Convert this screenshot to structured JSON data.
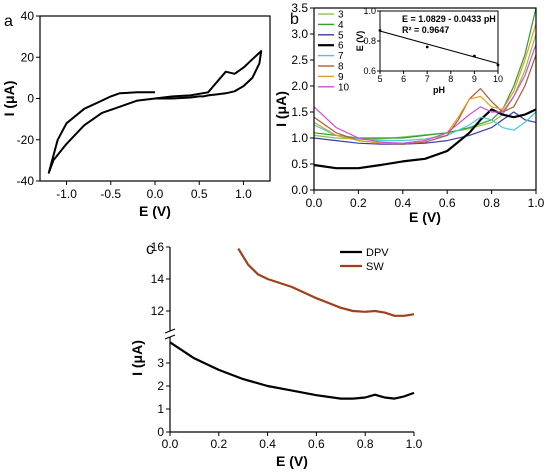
{
  "chart_data": [
    {
      "id": "a",
      "type": "line",
      "panel_label": "a",
      "xlabel": "E (V)",
      "ylabel": "I (μA)",
      "xlim": [
        -1.3,
        1.3
      ],
      "ylim": [
        -40,
        40
      ],
      "x_ticks": [
        -1.0,
        -0.5,
        0.0,
        0.5,
        1.0
      ],
      "x_tick_labels": [
        "-1.0",
        "-0.5",
        "0.0",
        "0.5",
        "1.0"
      ],
      "y_ticks": [
        -40,
        -20,
        0,
        20,
        40
      ],
      "y_tick_labels": [
        "-40",
        "-20",
        "0",
        "20",
        "40"
      ],
      "series": [
        {
          "color": "#000000",
          "x": [
            0.0,
            -0.2,
            -0.4,
            -0.5,
            -0.6,
            -0.8,
            -1.0,
            -1.1,
            -1.2,
            -1.15,
            -1.0,
            -0.8,
            -0.6,
            -0.4,
            -0.2,
            0.0,
            0.2,
            0.4,
            0.6,
            0.7,
            0.8,
            0.9,
            1.0,
            1.1,
            1.2,
            1.18,
            1.1,
            1.0,
            0.9,
            0.8,
            0.7,
            0.6,
            0.55,
            0.5,
            0.4,
            0.2,
            0.0
          ],
          "y": [
            3,
            3,
            2.5,
            1,
            -1,
            -5,
            -12,
            -20,
            -36,
            -30,
            -22,
            -13,
            -7,
            -4,
            -1,
            0,
            1,
            1.5,
            3,
            8,
            13,
            12,
            15,
            19,
            23,
            17,
            10,
            6,
            3.5,
            2.5,
            2,
            1.5,
            1,
            1,
            0.5,
            0,
            0
          ]
        }
      ]
    },
    {
      "id": "b",
      "type": "line",
      "panel_label": "b",
      "xlabel": "E (V)",
      "ylabel": "I (μA)",
      "xlim": [
        0.0,
        1.0
      ],
      "ylim": [
        0.0,
        3.5
      ],
      "x_ticks": [
        0.0,
        0.2,
        0.4,
        0.6,
        0.8,
        1.0
      ],
      "x_tick_labels": [
        "0.0",
        "0.2",
        "0.4",
        "0.6",
        "0.8",
        "1.0"
      ],
      "y_ticks": [
        0.0,
        0.5,
        1.0,
        1.5,
        2.0,
        2.5,
        3.0,
        3.5
      ],
      "y_tick_labels": [
        "0.0",
        "0.5",
        "1.0",
        "1.5",
        "2.0",
        "2.5",
        "3.0",
        "3.5"
      ],
      "legend": "top-left",
      "series": [
        {
          "name": "3",
          "color": "#8bc34a",
          "x": [
            0.0,
            0.1,
            0.2,
            0.3,
            0.4,
            0.5,
            0.6,
            0.7,
            0.8,
            0.85,
            0.9,
            0.95,
            1.0
          ],
          "y": [
            1.05,
            1.0,
            0.98,
            0.98,
            1.02,
            1.06,
            1.1,
            1.18,
            1.3,
            1.45,
            1.8,
            2.3,
            3.0
          ]
        },
        {
          "name": "4",
          "color": "#2e9e2e",
          "x": [
            0.0,
            0.1,
            0.2,
            0.3,
            0.4,
            0.5,
            0.6,
            0.7,
            0.8,
            0.85,
            0.9,
            0.95,
            1.0
          ],
          "y": [
            1.1,
            1.05,
            1.0,
            1.0,
            1.0,
            1.05,
            1.1,
            1.2,
            1.35,
            1.55,
            2.0,
            2.6,
            3.5
          ]
        },
        {
          "name": "5",
          "color": "#3a3ab0",
          "x": [
            0.0,
            0.1,
            0.2,
            0.3,
            0.4,
            0.5,
            0.6,
            0.7,
            0.8,
            0.85,
            0.9,
            0.95,
            1.0
          ],
          "y": [
            1.0,
            0.95,
            0.9,
            0.88,
            0.88,
            0.9,
            0.95,
            1.05,
            1.2,
            1.35,
            1.5,
            1.35,
            1.3
          ]
        },
        {
          "name": "6",
          "color": "#000000",
          "width": 2.2,
          "x": [
            0.0,
            0.1,
            0.2,
            0.3,
            0.4,
            0.5,
            0.6,
            0.7,
            0.75,
            0.8,
            0.85,
            0.9,
            0.95,
            1.0
          ],
          "y": [
            0.48,
            0.42,
            0.42,
            0.48,
            0.55,
            0.6,
            0.75,
            1.1,
            1.35,
            1.55,
            1.45,
            1.4,
            1.45,
            1.55
          ]
        },
        {
          "name": "7",
          "color": "#4ec7d6",
          "x": [
            0.0,
            0.1,
            0.2,
            0.3,
            0.4,
            0.5,
            0.6,
            0.65,
            0.7,
            0.75,
            0.8,
            0.85,
            0.9,
            0.95,
            1.0
          ],
          "y": [
            1.25,
            1.05,
            0.98,
            0.95,
            0.95,
            0.98,
            1.05,
            1.15,
            1.25,
            1.4,
            1.35,
            1.2,
            1.15,
            1.3,
            1.5
          ]
        },
        {
          "name": "8",
          "color": "#b05a3a",
          "x": [
            0.0,
            0.1,
            0.2,
            0.3,
            0.4,
            0.5,
            0.6,
            0.65,
            0.7,
            0.75,
            0.8,
            0.85,
            0.9,
            0.95,
            1.0
          ],
          "y": [
            1.4,
            1.1,
            0.95,
            0.9,
            0.88,
            0.92,
            1.05,
            1.35,
            1.75,
            1.95,
            1.7,
            1.5,
            1.6,
            2.0,
            2.6
          ]
        },
        {
          "name": "9",
          "color": "#e0a020",
          "x": [
            0.0,
            0.1,
            0.2,
            0.3,
            0.4,
            0.5,
            0.6,
            0.65,
            0.7,
            0.75,
            0.8,
            0.85,
            0.9,
            0.95,
            1.0
          ],
          "y": [
            1.3,
            1.05,
            0.95,
            0.9,
            0.9,
            0.95,
            1.1,
            1.4,
            1.75,
            1.8,
            1.6,
            1.55,
            1.9,
            2.5,
            3.2
          ]
        },
        {
          "name": "10",
          "color": "#d050d0",
          "x": [
            0.0,
            0.1,
            0.2,
            0.3,
            0.4,
            0.5,
            0.6,
            0.7,
            0.75,
            0.8,
            0.85,
            0.9,
            0.95,
            1.0
          ],
          "y": [
            1.6,
            1.2,
            1.0,
            0.92,
            0.9,
            0.95,
            1.1,
            1.45,
            1.6,
            1.5,
            1.5,
            1.8,
            2.2,
            2.8
          ]
        }
      ],
      "inset": {
        "type": "scatter",
        "xlabel": "pH",
        "ylabel": "E (V)",
        "xlim": [
          5,
          10
        ],
        "ylim": [
          0.6,
          1.0
        ],
        "x_ticks": [
          5,
          6,
          7,
          8,
          9,
          10
        ],
        "x_tick_labels": [
          "5",
          "6",
          "7",
          "8",
          "9",
          "10"
        ],
        "y_ticks": [
          0.6,
          0.8,
          1.0
        ],
        "y_tick_labels": [
          "0.6",
          "0.8",
          "1.0"
        ],
        "annotation_eq": "E = 1.0829 - 0.0433 pH",
        "annotation_r2": "R² = 0.9647",
        "points": {
          "x": [
            5,
            7,
            9,
            10
          ],
          "y": [
            0.87,
            0.76,
            0.7,
            0.64
          ]
        },
        "fit": {
          "slope": -0.0433,
          "intercept": 1.0829
        }
      }
    },
    {
      "id": "c",
      "type": "line",
      "panel_label": "c",
      "xlabel": "E (V)",
      "ylabel": "I (μA)",
      "xlim": [
        0.0,
        1.0
      ],
      "axis_break": true,
      "lower_ylim": [
        0,
        4
      ],
      "upper_ylim": [
        11,
        16
      ],
      "x_ticks": [
        0.0,
        0.2,
        0.4,
        0.6,
        0.8,
        1.0
      ],
      "x_tick_labels": [
        "0.0",
        "0.2",
        "0.4",
        "0.6",
        "0.8",
        "1.0"
      ],
      "lower_y_ticks": [
        0,
        1,
        2,
        3
      ],
      "lower_y_tick_labels": [
        "0",
        "1",
        "2",
        "3"
      ],
      "upper_y_ticks": [
        12,
        14,
        16
      ],
      "upper_y_tick_labels": [
        "12",
        "14",
        "16"
      ],
      "legend": "top-right",
      "series": [
        {
          "name": "DPV",
          "color": "#000000",
          "x": [
            0.0,
            0.1,
            0.2,
            0.3,
            0.4,
            0.5,
            0.6,
            0.7,
            0.75,
            0.8,
            0.84,
            0.88,
            0.92,
            0.96,
            1.0
          ],
          "y": [
            3.9,
            3.2,
            2.7,
            2.3,
            2.0,
            1.8,
            1.6,
            1.45,
            1.45,
            1.5,
            1.62,
            1.5,
            1.45,
            1.55,
            1.7
          ]
        },
        {
          "name": "SW",
          "color": "#a0401a",
          "x": [
            0.28,
            0.32,
            0.36,
            0.4,
            0.45,
            0.5,
            0.55,
            0.6,
            0.65,
            0.7,
            0.75,
            0.8,
            0.84,
            0.88,
            0.92,
            0.96,
            1.0
          ],
          "y": [
            15.9,
            14.9,
            14.3,
            14.0,
            13.75,
            13.5,
            13.15,
            12.8,
            12.5,
            12.2,
            12.0,
            11.95,
            12.0,
            11.9,
            11.7,
            11.7,
            11.8
          ]
        }
      ]
    }
  ]
}
